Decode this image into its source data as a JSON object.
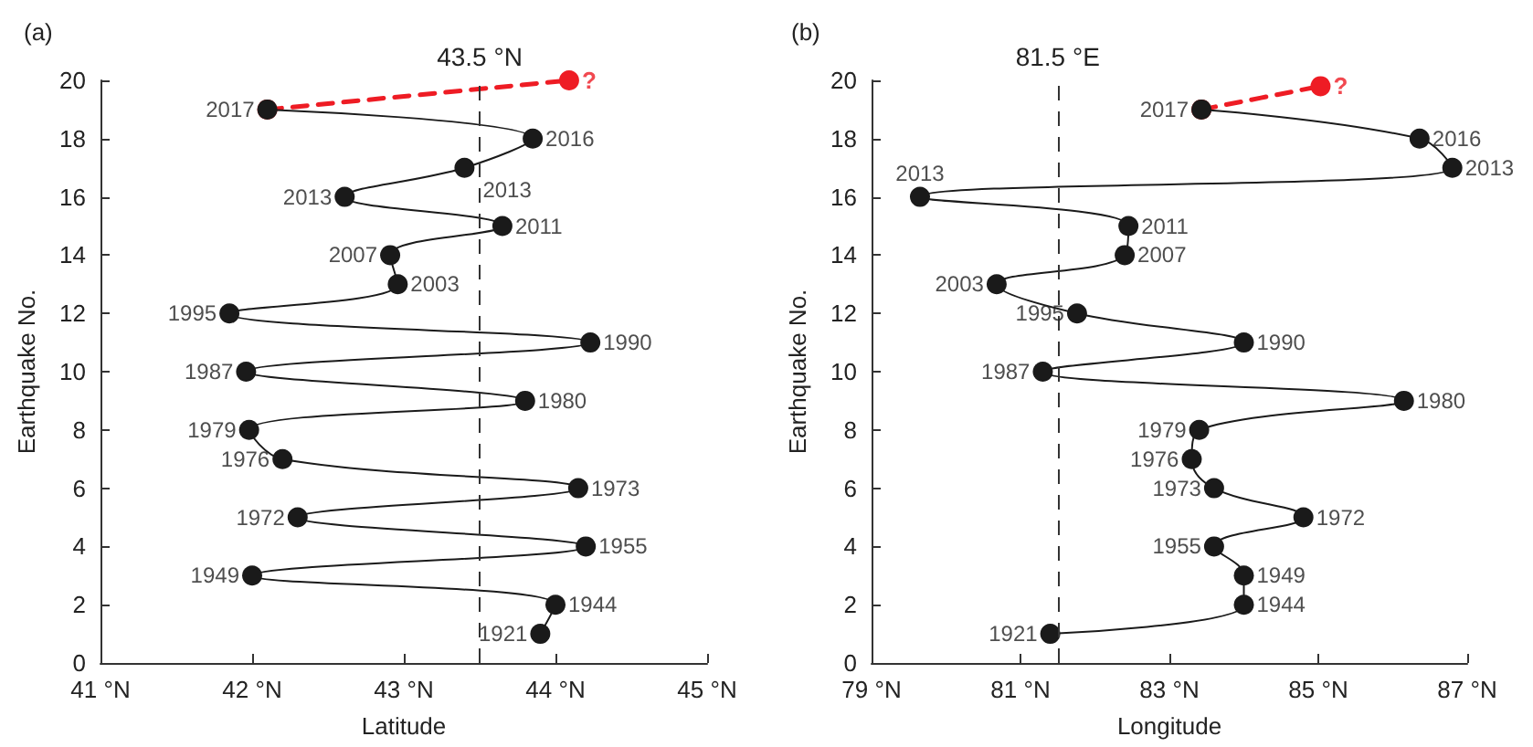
{
  "chart_data": [
    {
      "type": "line",
      "title": "(a)",
      "xlabel": "Latitude",
      "ylabel": "Earthquake No.",
      "xlim": [
        41,
        45
      ],
      "xticks": [
        {
          "value": 41,
          "label": "41 °N"
        },
        {
          "value": 42,
          "label": "42 °N"
        },
        {
          "value": 43,
          "label": "43 °N"
        },
        {
          "value": 44,
          "label": "44 °N"
        },
        {
          "value": 45,
          "label": "45 °N"
        }
      ],
      "ylim": [
        0,
        20
      ],
      "yticks": [
        0,
        2,
        4,
        6,
        8,
        10,
        12,
        14,
        16,
        18,
        20
      ],
      "grid": false,
      "marker": "circle",
      "line_style": "solid",
      "series": [
        {
          "color": "#ee1c24",
          "line_style": "dashed",
          "x": [
            42.1,
            44.09
          ],
          "values": [
            19,
            20
          ]
        },
        {
          "color": "#1a1a1a",
          "x": [
            43.9,
            44.0,
            42.0,
            44.2,
            42.3,
            44.15,
            42.2,
            41.98,
            43.8,
            41.96,
            44.23,
            41.85,
            42.96,
            42.91,
            43.65,
            42.61,
            43.4,
            43.85,
            42.1
          ],
          "values": [
            1,
            2,
            3,
            4,
            5,
            6,
            7,
            8,
            9,
            10,
            11,
            12,
            13,
            14,
            15,
            16,
            17,
            18,
            19
          ]
        }
      ],
      "ref_lines": [
        {
          "axis": "x",
          "value": 43.5,
          "label": "43.5 °N",
          "color": "#333333",
          "line_style": "dashed"
        }
      ],
      "annotations": [
        {
          "text": "1921",
          "x": 43.9,
          "y": 1
        },
        {
          "text": "1944",
          "x": 44.0,
          "y": 2
        },
        {
          "text": "1949",
          "x": 42.0,
          "y": 3
        },
        {
          "text": "1955",
          "x": 44.2,
          "y": 4
        },
        {
          "text": "1972",
          "x": 42.3,
          "y": 5
        },
        {
          "text": "1973",
          "x": 44.15,
          "y": 6
        },
        {
          "text": "1976",
          "x": 42.2,
          "y": 7
        },
        {
          "text": "1979",
          "x": 41.98,
          "y": 8
        },
        {
          "text": "1980",
          "x": 43.8,
          "y": 9
        },
        {
          "text": "1987",
          "x": 41.96,
          "y": 10
        },
        {
          "text": "1990",
          "x": 44.23,
          "y": 11
        },
        {
          "text": "1995",
          "x": 41.85,
          "y": 12
        },
        {
          "text": "2003",
          "x": 42.96,
          "y": 13
        },
        {
          "text": "2007",
          "x": 42.91,
          "y": 14
        },
        {
          "text": "2011",
          "x": 43.65,
          "y": 15
        },
        {
          "text": "2013",
          "x": 42.61,
          "y": 16
        },
        {
          "text": "2013",
          "x": 43.4,
          "y": 17
        },
        {
          "text": "2016",
          "x": 43.85,
          "y": 18
        },
        {
          "text": "2017",
          "x": 42.1,
          "y": 19
        },
        {
          "text": "?",
          "x": 44.09,
          "y": 20
        }
      ]
    },
    {
      "type": "line",
      "title": "(b)",
      "xlabel": "Longitude",
      "ylabel": "Earthquake No.",
      "xlim": [
        79,
        87
      ],
      "xticks": [
        {
          "value": 79,
          "label": "79 °N"
        },
        {
          "value": 81,
          "label": "81 °N"
        },
        {
          "value": 83,
          "label": "83 °N"
        },
        {
          "value": 85,
          "label": "85 °N"
        },
        {
          "value": 87,
          "label": "87 °N"
        }
      ],
      "ylim": [
        0,
        20
      ],
      "yticks": [
        0,
        2,
        4,
        6,
        8,
        10,
        12,
        14,
        16,
        18,
        20
      ],
      "grid": false,
      "marker": "circle",
      "line_style": "solid",
      "series": [
        {
          "color": "#ee1c24",
          "line_style": "dashed",
          "x": [
            83.43,
            85.03
          ],
          "values": [
            19,
            19.8
          ]
        },
        {
          "color": "#1a1a1a",
          "x": [
            81.4,
            84.0,
            84.0,
            83.6,
            84.8,
            83.6,
            83.3,
            83.4,
            86.15,
            81.3,
            84.0,
            81.76,
            80.68,
            82.4,
            82.45,
            79.65,
            86.8,
            86.36,
            83.43
          ],
          "values": [
            1,
            2,
            3,
            4,
            5,
            6,
            7,
            8,
            9,
            10,
            11,
            12,
            13,
            14,
            15,
            16,
            17,
            18,
            19
          ]
        }
      ],
      "ref_lines": [
        {
          "axis": "x",
          "value": 81.5,
          "label": "81.5 °E",
          "color": "#333333",
          "line_style": "dashed"
        }
      ],
      "annotations": [
        {
          "text": "1921",
          "x": 81.4,
          "y": 1
        },
        {
          "text": "1944",
          "x": 84.0,
          "y": 2
        },
        {
          "text": "1949",
          "x": 84.0,
          "y": 3
        },
        {
          "text": "1955",
          "x": 83.6,
          "y": 4
        },
        {
          "text": "1972",
          "x": 84.8,
          "y": 5
        },
        {
          "text": "1973",
          "x": 83.6,
          "y": 6
        },
        {
          "text": "1976",
          "x": 83.3,
          "y": 7
        },
        {
          "text": "1979",
          "x": 83.4,
          "y": 8
        },
        {
          "text": "1980",
          "x": 86.15,
          "y": 9
        },
        {
          "text": "1987",
          "x": 81.3,
          "y": 10
        },
        {
          "text": "1990",
          "x": 84.0,
          "y": 11
        },
        {
          "text": "1995",
          "x": 81.76,
          "y": 12
        },
        {
          "text": "2003",
          "x": 80.68,
          "y": 13
        },
        {
          "text": "2007",
          "x": 82.4,
          "y": 14
        },
        {
          "text": "2011",
          "x": 82.45,
          "y": 15
        },
        {
          "text": "2013",
          "x": 79.65,
          "y": 16
        },
        {
          "text": "2013",
          "x": 86.8,
          "y": 17
        },
        {
          "text": "2016",
          "x": 86.36,
          "y": 18
        },
        {
          "text": "2017",
          "x": 83.43,
          "y": 19
        },
        {
          "text": "?",
          "x": 85.03,
          "y": 19.8
        }
      ]
    }
  ]
}
